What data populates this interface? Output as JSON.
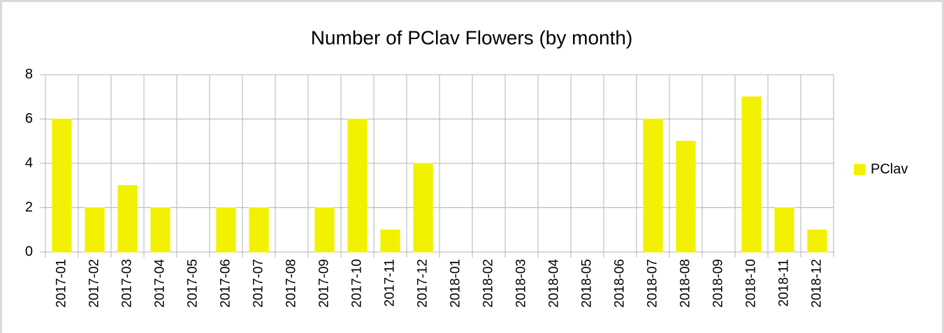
{
  "chart_data": {
    "type": "bar",
    "title": "Number of PClav Flowers (by month)",
    "categories": [
      "2017-01",
      "2017-02",
      "2017-03",
      "2017-04",
      "2017-05",
      "2017-06",
      "2017-07",
      "2017-08",
      "2017-09",
      "2017-10",
      "2017-11",
      "2017-12",
      "2018-01",
      "2018-02",
      "2018-03",
      "2018-04",
      "2018-05",
      "2018-06",
      "2018-07",
      "2018-08",
      "2018-09",
      "2018-10",
      "2018-11",
      "2018-12"
    ],
    "series": [
      {
        "name": "PClav",
        "color": "#f2f200",
        "values": [
          6,
          2,
          3,
          2,
          0,
          2,
          2,
          0,
          2,
          6,
          1,
          4,
          0,
          0,
          0,
          0,
          0,
          0,
          6,
          5,
          0,
          7,
          2,
          1
        ]
      }
    ],
    "ylim": [
      0,
      8
    ],
    "yticks": [
      0,
      2,
      4,
      6,
      8
    ],
    "grid": true,
    "legend": "right"
  }
}
